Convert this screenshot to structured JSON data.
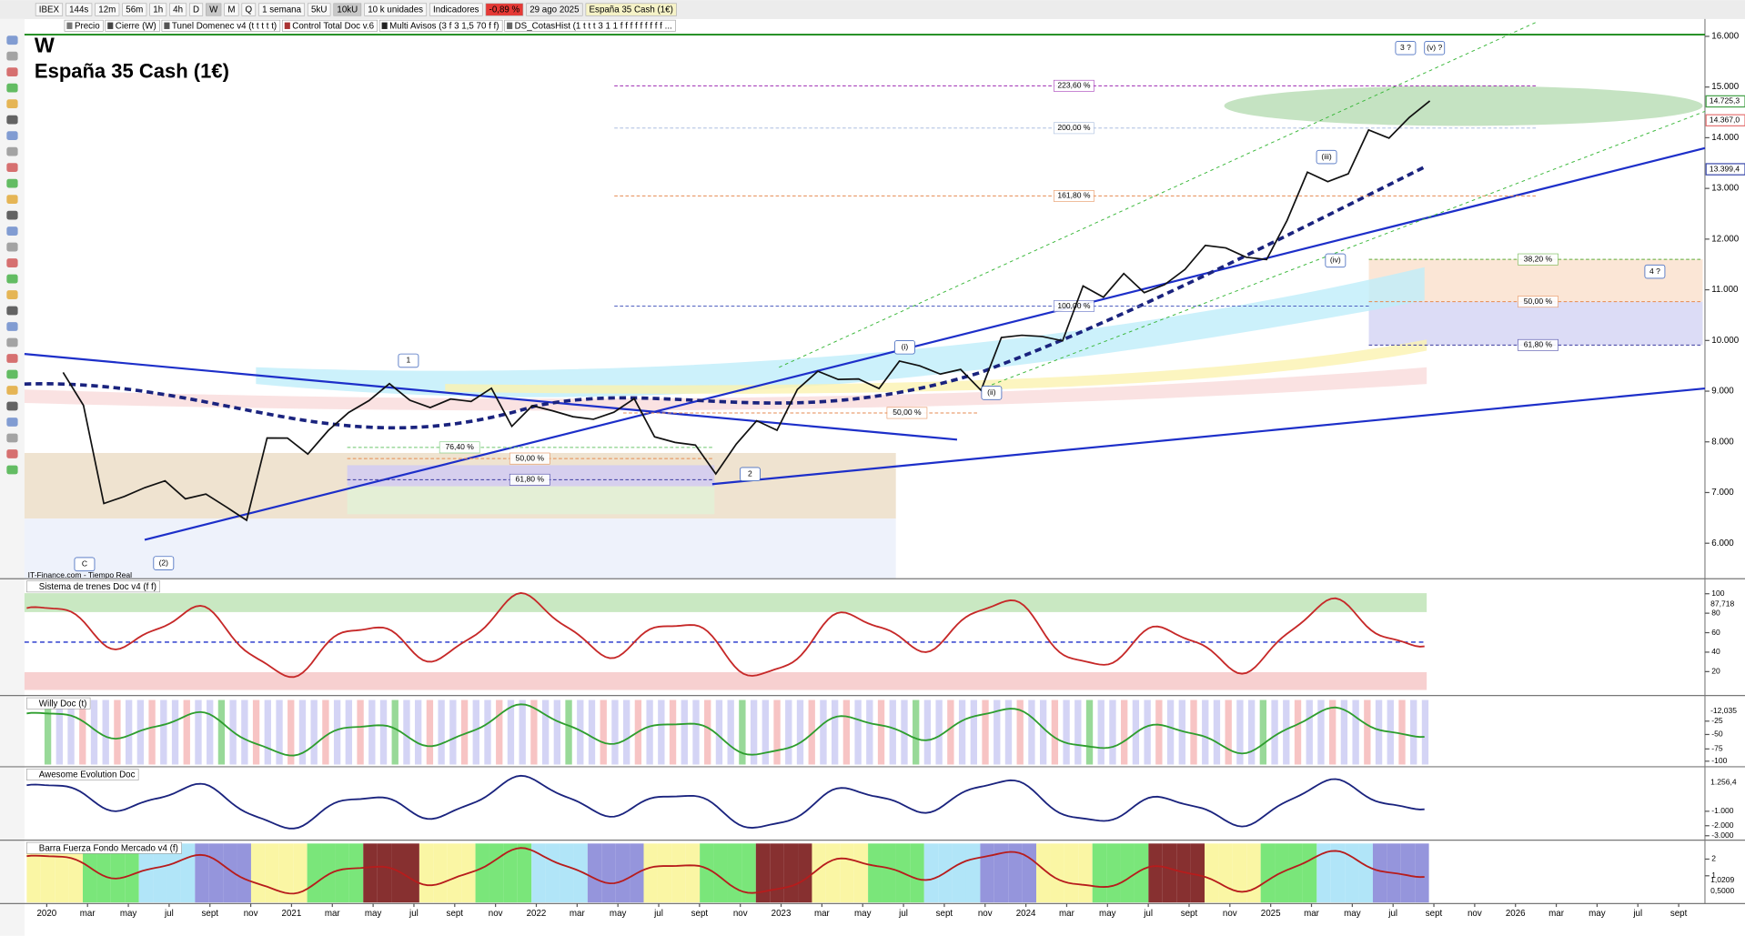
{
  "toolbar": {
    "items": [
      "IBEX",
      "144s",
      "12m",
      "56m",
      "1h",
      "4h",
      "D",
      "W",
      "M",
      "Q",
      "1 semana",
      "5kU",
      "10kU",
      "10 k unidades",
      "Indicadores"
    ],
    "change": "-0,89 %",
    "date": "29 ago 2025",
    "instrument": "España 35 Cash (1€)"
  },
  "indicator_bar": [
    "Precio",
    "Cierre (W)",
    "Tunel Domenec v4 (t t t t t)",
    "Control Total Doc v.6",
    "Multi Avisos (3 f 3 1,5 70 f f)",
    "DS_CotasHist (1 t t t 3 1 1 f f f f f f f f f ..."
  ],
  "main_chart": {
    "type": "line",
    "period": "W",
    "title": "España 35 Cash (1€)",
    "color": "#111111",
    "x": [
      "2020-01",
      "2020-02",
      "2020-03",
      "2020-04",
      "2020-05",
      "2020-06",
      "2020-07",
      "2020-08",
      "2020-09",
      "2020-10",
      "2020-11",
      "2020-12",
      "2021-01",
      "2021-02",
      "2021-03",
      "2021-04",
      "2021-05",
      "2021-06",
      "2021-07",
      "2021-08",
      "2021-09",
      "2021-10",
      "2021-11",
      "2021-12",
      "2022-01",
      "2022-02",
      "2022-03",
      "2022-04",
      "2022-05",
      "2022-06",
      "2022-07",
      "2022-08",
      "2022-09",
      "2022-10",
      "2022-11",
      "2022-12",
      "2023-01",
      "2023-02",
      "2023-03",
      "2023-04",
      "2023-05",
      "2023-06",
      "2023-07",
      "2023-08",
      "2023-09",
      "2023-10",
      "2023-11",
      "2023-12",
      "2024-01",
      "2024-02",
      "2024-03",
      "2024-04",
      "2024-05",
      "2024-06",
      "2024-07",
      "2024-08",
      "2024-09",
      "2024-10",
      "2024-11",
      "2024-12",
      "2025-01",
      "2025-02",
      "2025-03",
      "2025-04",
      "2025-05",
      "2025-06",
      "2025-07",
      "2025-08"
    ],
    "values": [
      9370,
      8720,
      6785,
      6922,
      7096,
      7231,
      6877,
      6970,
      6716,
      6452,
      8077,
      8074,
      7758,
      8225,
      8580,
      8815,
      9148,
      8821,
      8676,
      8846,
      8796,
      9057,
      8306,
      8714,
      8613,
      8497,
      8445,
      8584,
      8852,
      8099,
      7988,
      7937,
      7367,
      7957,
      8416,
      8229,
      9034,
      9394,
      9232,
      9241,
      9051,
      9593,
      9500,
      9337,
      9428,
      9017,
      10058,
      10102,
      10078,
      9994,
      11075,
      10854,
      11322,
      10943,
      11102,
      11402,
      11877,
      11826,
      11642,
      11595,
      12368,
      13322,
      13135,
      13287,
      14152,
      13992,
      14400,
      14725
    ],
    "ylim": [
      5300,
      16100
    ],
    "yticks": [
      {
        "value": 6000,
        "label": "6.000"
      },
      {
        "value": 7000,
        "label": "7.000"
      },
      {
        "value": 8000,
        "label": "8.000"
      },
      {
        "value": 9000,
        "label": "9.000"
      },
      {
        "value": 10000,
        "label": "10.000"
      },
      {
        "value": 11000,
        "label": "11.000"
      },
      {
        "value": 12000,
        "label": "12.000"
      },
      {
        "value": 13000,
        "label": "13.000"
      },
      {
        "value": 14000,
        "label": "14.000"
      },
      {
        "value": 15000,
        "label": "15.000"
      },
      {
        "value": 16000,
        "label": "16.000"
      }
    ],
    "fib_labels": [
      "223,60 %",
      "200,00 %",
      "161,80 %",
      "100,00 %",
      "38,20 %",
      "50,00 %",
      "61,80 %",
      "76,40 %",
      "50,00 %",
      "61,80 %",
      "50,00 %"
    ],
    "wave_labels": [
      "1",
      "(2)",
      "C",
      "2",
      "(i)",
      "(ii)",
      "(iii)",
      "(iv)",
      "3 ?",
      "(v) ?",
      "4 ?"
    ],
    "price_labels": [
      "14.725,3",
      "14.367,0",
      "13.399,4"
    ],
    "source": "IT-Finance.com - Tiempo Real"
  },
  "x_axis": [
    "2020",
    "mar",
    "may",
    "jul",
    "sept",
    "nov",
    "2021",
    "mar",
    "may",
    "jul",
    "sept",
    "nov",
    "2022",
    "mar",
    "may",
    "jul",
    "sept",
    "nov",
    "2023",
    "mar",
    "may",
    "jul",
    "sept",
    "nov",
    "2024",
    "mar",
    "may",
    "jul",
    "sept",
    "nov",
    "2025",
    "mar",
    "may",
    "jul",
    "sept",
    "nov",
    "2026",
    "mar",
    "may",
    "jul",
    "sept"
  ],
  "indicators": [
    {
      "title": "Sistema de trenes Doc v4 (f f)",
      "ticks": [
        100,
        80,
        60,
        40,
        20
      ],
      "value_label": "87,718"
    },
    {
      "title": "Willy Doc (t)",
      "ticks": [
        -25,
        -50,
        -75,
        -100
      ],
      "value_label": "-12,035"
    },
    {
      "title": "Awesome Evolution Doc",
      "ticks": [
        {
          "value": -1000,
          "label": "-1.000"
        },
        {
          "value": -2000,
          "label": "-2.000"
        },
        {
          "value": -3000,
          "label": "-3.000"
        }
      ],
      "value_label": "1.256,4"
    },
    {
      "title": "Barra Fuerza Fondo Mercado v4 (f)",
      "ticks": [
        2,
        1
      ],
      "value_label": "1,0209",
      "extra_label": "0,5000"
    }
  ]
}
